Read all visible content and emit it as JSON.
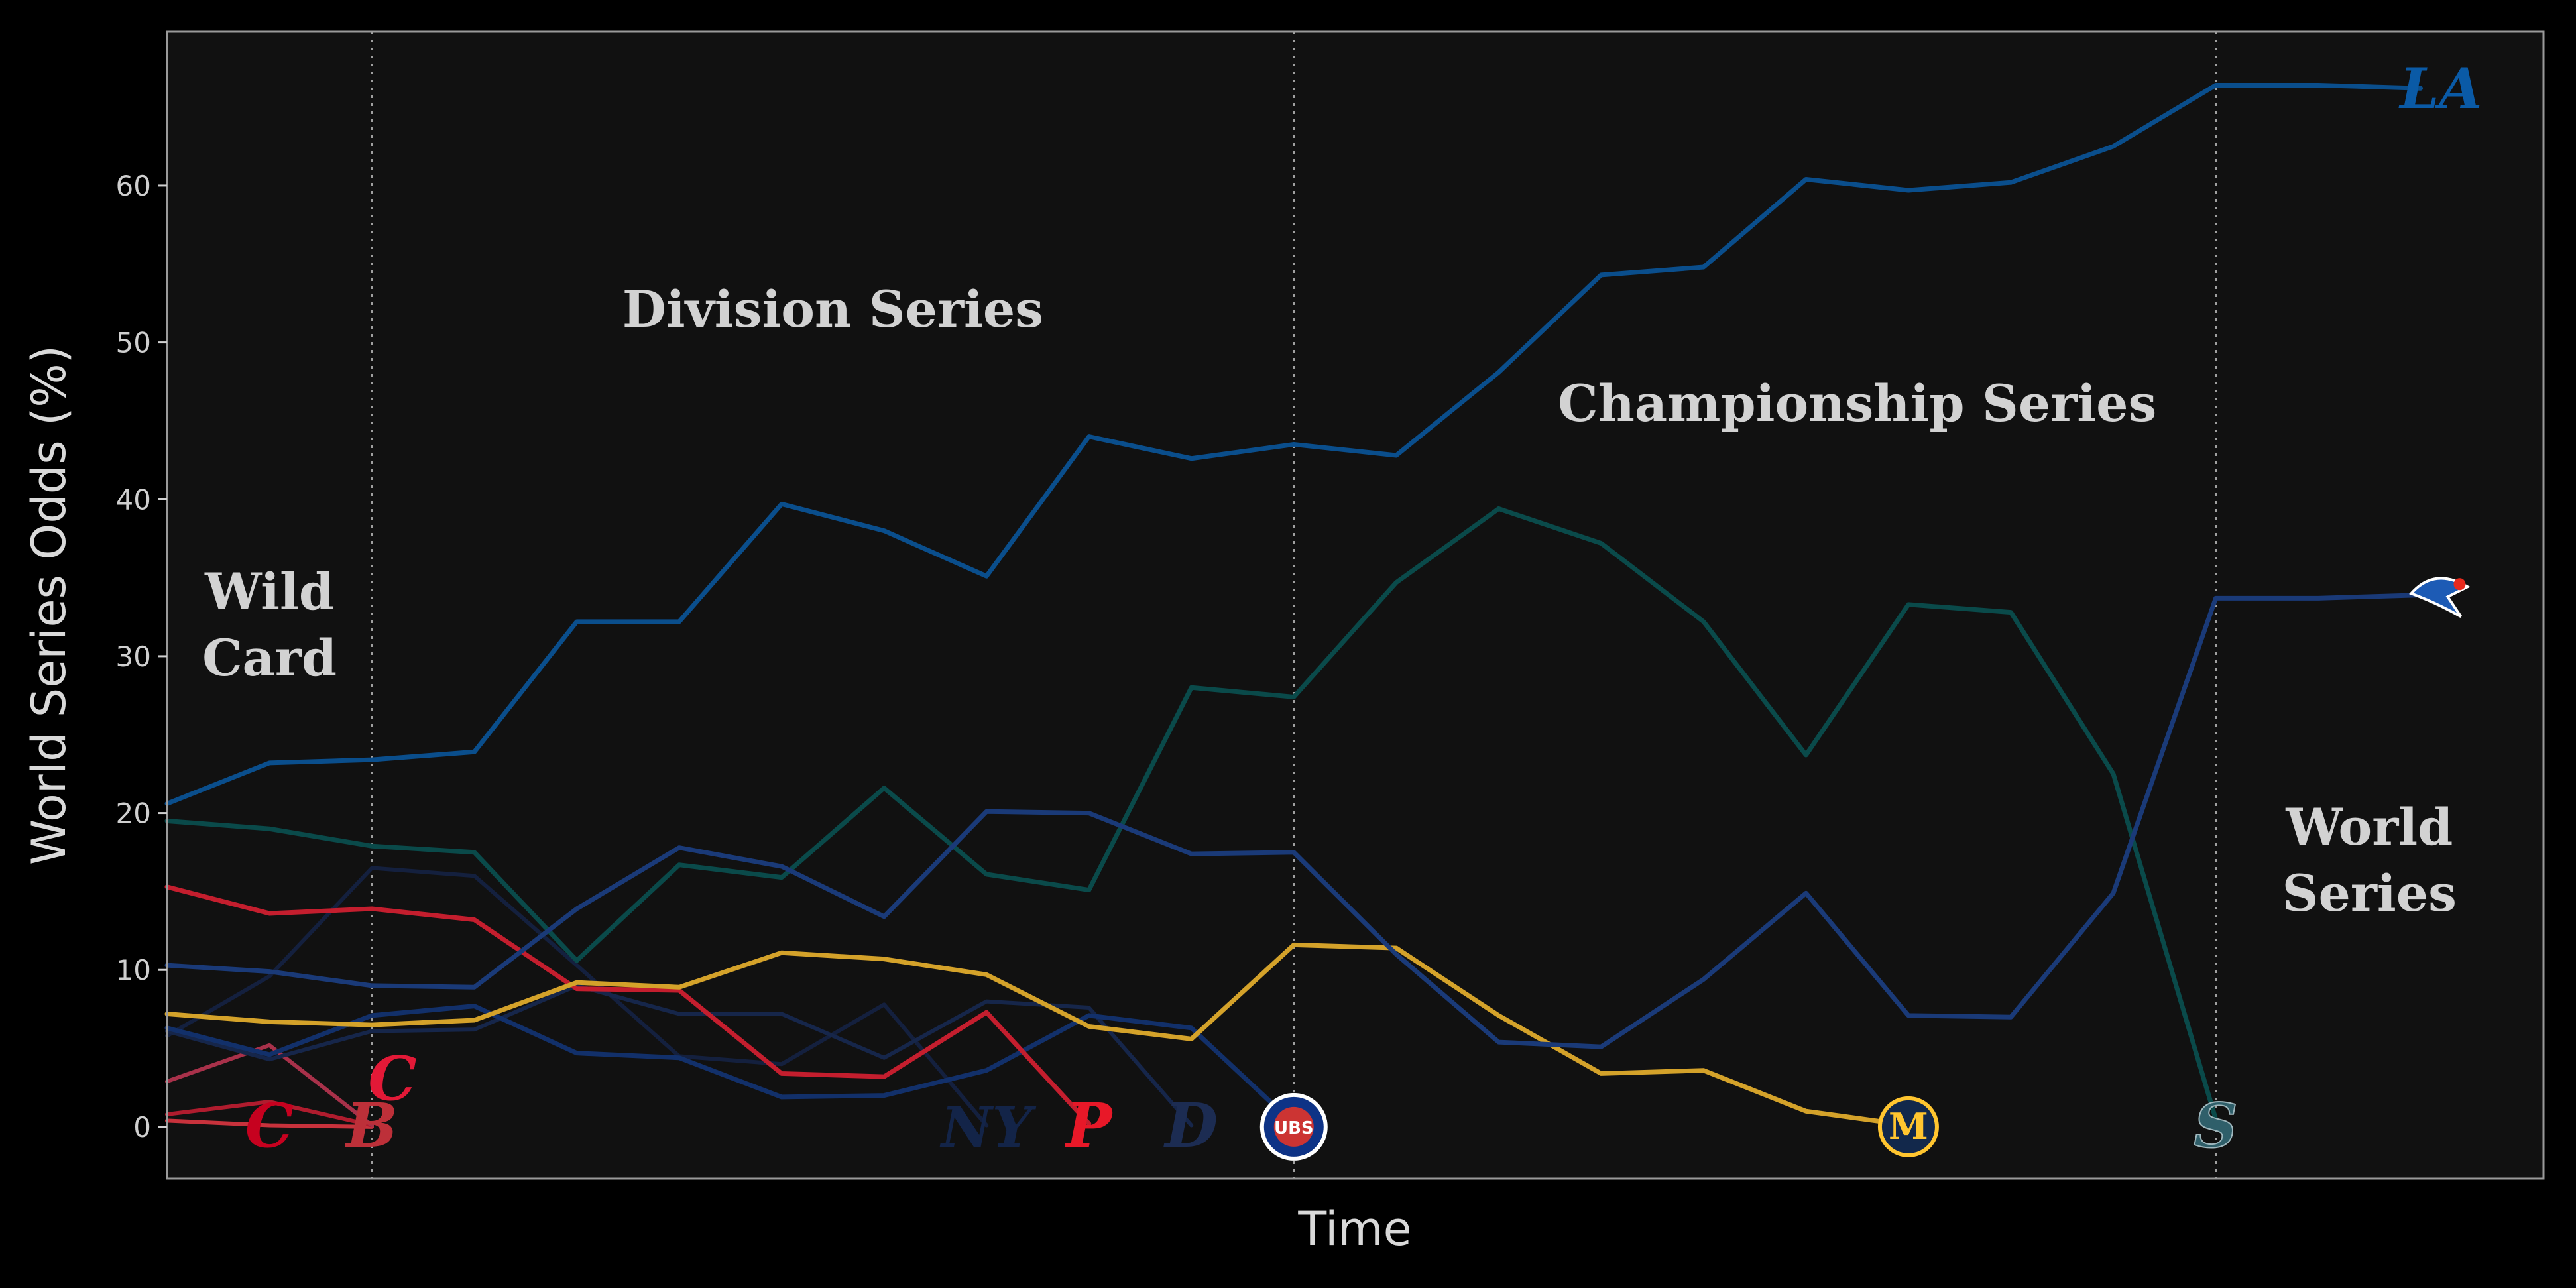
{
  "chart_data": {
    "type": "line",
    "xlabel": "Time",
    "ylabel": "World Series Odds (%)",
    "ylim": [
      -3.3,
      69.8
    ],
    "xlim": [
      0,
      23.2
    ],
    "yticks": [
      0,
      10,
      20,
      30,
      40,
      50,
      60
    ],
    "round_dividers_x": [
      2,
      11,
      20
    ],
    "round_labels": [
      {
        "lines": [
          "Wild",
          "Card"
        ],
        "x": 1.0,
        "y": 33
      },
      {
        "lines": [
          "Division Series"
        ],
        "x": 6.5,
        "y": 51
      },
      {
        "lines": [
          "Championship Series"
        ],
        "x": 16.5,
        "y": 45
      },
      {
        "lines": [
          "World",
          "Series"
        ],
        "x": 21.5,
        "y": 18
      }
    ],
    "series": [
      {
        "team": "Dodgers",
        "logo_text": "LA",
        "color": "#0a4e8c",
        "logo_color": "#0a5aa6",
        "width": 7,
        "values": [
          20.6,
          23.2,
          23.4,
          23.9,
          32.2,
          32.2,
          39.7,
          38.0,
          35.1,
          44.0,
          42.6,
          43.5,
          42.8,
          48.1,
          54.3,
          54.8,
          60.4,
          59.7,
          60.2,
          62.5,
          66.4,
          66.4,
          66.2
        ]
      },
      {
        "team": "Blue Jays",
        "logo_text": "TOR",
        "color": "#1a3a78",
        "logo_color": "#1d5bb5",
        "width": 7,
        "values": [
          10.3,
          9.9,
          9.0,
          8.9,
          13.9,
          17.8,
          16.6,
          13.4,
          20.1,
          20.0,
          17.4,
          17.5,
          11.0,
          5.4,
          5.1,
          9.4,
          14.9,
          7.1,
          7.0,
          14.9,
          33.7,
          33.7,
          33.9
        ]
      },
      {
        "team": "Mariners",
        "logo_text": "S",
        "color": "#0a4a4a",
        "logo_color": "#123d4a",
        "width": 7,
        "values": [
          19.5,
          19.0,
          17.9,
          17.5,
          10.6,
          16.7,
          15.9,
          21.6,
          16.1,
          15.1,
          28.0,
          27.4,
          34.7,
          39.4,
          37.2,
          32.2,
          23.7,
          33.3,
          32.8,
          22.5,
          0.5
        ]
      },
      {
        "team": "Brewers",
        "logo_text": "M",
        "color": "#d4a22a",
        "logo_color": "#1a2f5c",
        "width": 7,
        "values": [
          7.2,
          6.7,
          6.5,
          6.8,
          9.2,
          8.9,
          11.1,
          10.7,
          9.7,
          6.4,
          5.6,
          11.6,
          11.4,
          7.1,
          3.4,
          3.6,
          1.0,
          0.1
        ]
      },
      {
        "team": "Phillies",
        "logo_text": "P",
        "color": "#c41e2e",
        "logo_color": "#e81828",
        "width": 7,
        "values": [
          15.3,
          13.6,
          13.9,
          13.2,
          8.8,
          8.7,
          3.4,
          3.2,
          7.3,
          0.2
        ]
      },
      {
        "team": "Cubs",
        "logo_text": "UBS",
        "color": "#12306a",
        "logo_color": "#1d4fa5",
        "width": 7,
        "values": [
          6.3,
          4.6,
          7.1,
          7.7,
          4.7,
          4.4,
          1.9,
          2.0,
          3.6,
          7.1,
          6.3,
          0.2
        ]
      },
      {
        "team": "Tigers",
        "logo_text": "D",
        "color": "#16264a",
        "logo_color": "#1c2c52",
        "width": 6,
        "values": [
          6.1,
          4.3,
          6.1,
          6.2,
          9.0,
          7.2,
          7.2,
          4.4,
          8.0,
          7.6,
          0.1
        ]
      },
      {
        "team": "Yankees",
        "logo_text": "NY",
        "color": "#14203e",
        "logo_color": "#0e1d40",
        "width": 6,
        "values": [
          5.8,
          9.6,
          16.5,
          16.0,
          10.3,
          4.5,
          4.0,
          7.8,
          0.1
        ]
      },
      {
        "team": "Guardians",
        "logo_text": "C",
        "color": "#a8314a",
        "logo_color": "#d0263e",
        "width": 6,
        "values": [
          2.9,
          5.2,
          0.1
        ]
      },
      {
        "team": "Reds",
        "logo_text": "C",
        "color": "#b01c2e",
        "logo_color": "#c6011f",
        "width": 6,
        "values": [
          0.8,
          1.6,
          0.1
        ]
      },
      {
        "team": "Red Sox",
        "logo_text": "B",
        "color": "#c8323c",
        "logo_color": "#bd3039",
        "width": 6,
        "values": [
          0.4,
          0.1,
          0.0
        ]
      }
    ],
    "logos": [
      {
        "team": "Dodgers",
        "text": "LA",
        "x": 22.2,
        "y": 66.2,
        "color": "#0a5aa6"
      },
      {
        "team": "Blue Jays",
        "text": "TOR",
        "x": 22.2,
        "y": 34.0,
        "color": "#1d5bb5"
      },
      {
        "team": "Guardians",
        "text": "C",
        "x": 2.2,
        "y": 3.0,
        "color": "#e31937"
      },
      {
        "team": "Reds",
        "text": "C",
        "x": 1.0,
        "y": 0.0,
        "color": "#c6011f"
      },
      {
        "team": "Red Sox",
        "text": "B",
        "x": 2.0,
        "y": 0.0,
        "color": "#bd3039"
      },
      {
        "team": "Yankees",
        "text": "NY",
        "x": 8.0,
        "y": 0.0,
        "color": "#132448"
      },
      {
        "team": "Phillies",
        "text": "P",
        "x": 9.0,
        "y": 0.0,
        "color": "#e81828"
      },
      {
        "team": "Tigers",
        "text": "D",
        "x": 10.0,
        "y": 0.0,
        "color": "#1c2c52"
      },
      {
        "team": "Cubs",
        "text": "UBS",
        "x": 11.0,
        "y": 0.0,
        "color": "#0e3386"
      },
      {
        "team": "Brewers",
        "text": "M",
        "x": 17.0,
        "y": 0.0,
        "color": "#ffc52f"
      },
      {
        "team": "Mariners",
        "text": "S",
        "x": 20.0,
        "y": 0.0,
        "color": "#2f5f6a"
      }
    ],
    "background": "#111111",
    "page_background": "#000000",
    "frame_color": "#9a9a9a",
    "grid": false,
    "legend": "none"
  }
}
